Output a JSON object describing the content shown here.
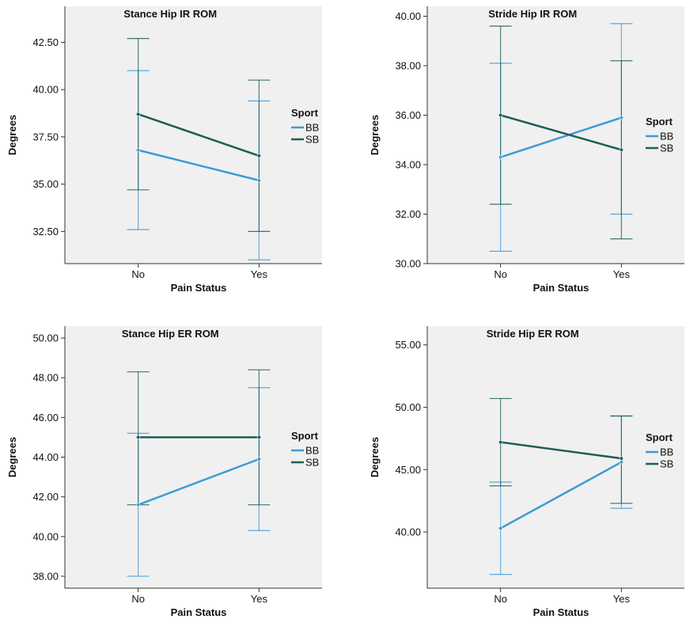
{
  "colors": {
    "BB": "#3d9bd4",
    "SB": "#1e5e57",
    "panel_bg": "#f0f0f0"
  },
  "chart_data": [
    {
      "type": "line",
      "title": "Stance Hip IR ROM",
      "xlabel": "Pain Status",
      "ylabel": "Degrees",
      "categories": [
        "No",
        "Yes"
      ],
      "ylim": [
        30.8,
        44.4
      ],
      "yticks": [
        "32.50",
        "35.00",
        "37.50",
        "40.00",
        "42.50"
      ],
      "legend": {
        "title": "Sport",
        "position": "right",
        "entries": [
          "BB",
          "SB"
        ]
      },
      "series": [
        {
          "name": "BB",
          "values": [
            36.8,
            35.2
          ],
          "error_low": [
            32.6,
            31.0
          ],
          "error_high": [
            41.0,
            39.4
          ]
        },
        {
          "name": "SB",
          "values": [
            38.7,
            36.5
          ],
          "error_low": [
            34.7,
            32.5
          ],
          "error_high": [
            42.7,
            40.5
          ]
        }
      ]
    },
    {
      "type": "line",
      "title": "Stride Hip IR ROM",
      "xlabel": "Pain Status",
      "ylabel": "Degrees",
      "categories": [
        "No",
        "Yes"
      ],
      "ylim": [
        30.0,
        40.4
      ],
      "yticks": [
        "30.00",
        "32.00",
        "34.00",
        "36.00",
        "38.00",
        "40.00"
      ],
      "legend": {
        "title": "Sport",
        "position": "right",
        "entries": [
          "BB",
          "SB"
        ]
      },
      "series": [
        {
          "name": "BB",
          "values": [
            34.3,
            35.9
          ],
          "error_low": [
            30.5,
            32.0
          ],
          "error_high": [
            38.1,
            39.7
          ]
        },
        {
          "name": "SB",
          "values": [
            36.0,
            34.6
          ],
          "error_low": [
            32.4,
            31.0
          ],
          "error_high": [
            39.6,
            38.2
          ]
        }
      ]
    },
    {
      "type": "line",
      "title": "Stance Hip ER ROM",
      "xlabel": "Pain Status",
      "ylabel": "Degrees",
      "categories": [
        "No",
        "Yes"
      ],
      "ylim": [
        37.4,
        50.6
      ],
      "yticks": [
        "38.00",
        "40.00",
        "42.00",
        "44.00",
        "46.00",
        "48.00",
        "50.00"
      ],
      "legend": {
        "title": "Sport",
        "position": "right",
        "entries": [
          "BB",
          "SB"
        ]
      },
      "series": [
        {
          "name": "BB",
          "values": [
            41.6,
            43.9
          ],
          "error_low": [
            38.0,
            40.3
          ],
          "error_high": [
            45.2,
            47.5
          ]
        },
        {
          "name": "SB",
          "values": [
            45.0,
            45.0
          ],
          "error_low": [
            41.6,
            41.6
          ],
          "error_high": [
            48.3,
            48.4
          ]
        }
      ]
    },
    {
      "type": "line",
      "title": "Stride Hip ER ROM",
      "xlabel": "Pain Status",
      "ylabel": "Degrees",
      "categories": [
        "No",
        "Yes"
      ],
      "ylim": [
        35.5,
        56.5
      ],
      "yticks": [
        "40.00",
        "45.00",
        "50.00",
        "55.00"
      ],
      "legend": {
        "title": "Sport",
        "position": "right",
        "entries": [
          "BB",
          "SB"
        ]
      },
      "series": [
        {
          "name": "BB",
          "values": [
            40.3,
            45.6
          ],
          "error_low": [
            36.6,
            41.9
          ],
          "error_high": [
            44.0,
            49.3
          ]
        },
        {
          "name": "SB",
          "values": [
            47.2,
            45.9
          ],
          "error_low": [
            43.7,
            42.3
          ],
          "error_high": [
            50.7,
            49.3
          ]
        }
      ]
    }
  ]
}
